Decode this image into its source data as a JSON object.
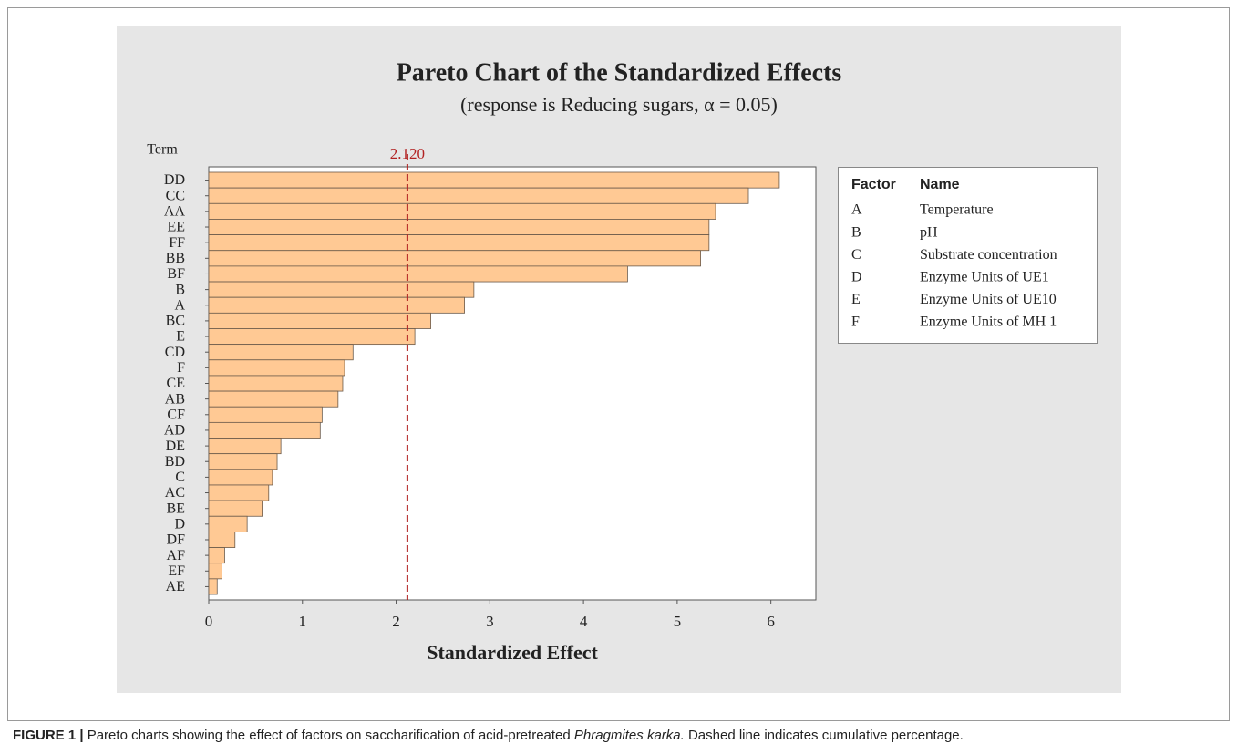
{
  "chart_data": {
    "type": "bar",
    "title": "Pareto Chart of the Standardized Effects",
    "subtitle": "(response is Reducing sugars, α = 0.05)",
    "y_axis_label": "Term",
    "x_axis_label": "Standardized Effect",
    "categories": [
      "DD",
      "CC",
      "AA",
      "EE",
      "FF",
      "BB",
      "BF",
      "B",
      "A",
      "BC",
      "E",
      "CD",
      "F",
      "CE",
      "AB",
      "CF",
      "AD",
      "DE",
      "BD",
      "C",
      "AC",
      "BE",
      "D",
      "DF",
      "AF",
      "EF",
      "AE"
    ],
    "values": [
      6.09,
      5.76,
      5.41,
      5.34,
      5.34,
      5.25,
      4.47,
      2.83,
      2.73,
      2.37,
      2.2,
      1.54,
      1.45,
      1.43,
      1.38,
      1.21,
      1.19,
      0.77,
      0.73,
      0.68,
      0.64,
      0.57,
      0.41,
      0.28,
      0.17,
      0.14,
      0.09
    ],
    "color": "#ffc994",
    "xlim": [
      0,
      6.48
    ],
    "xticks": [
      0,
      1,
      2,
      3,
      4,
      5,
      6
    ],
    "reference_line": {
      "value": 2.12,
      "label": "2.120",
      "color": "#b22222"
    },
    "legend": {
      "headers": [
        "Factor",
        "Name"
      ],
      "rows": [
        [
          "A",
          "Temperature"
        ],
        [
          "B",
          "pH"
        ],
        [
          "C",
          "Substrate concentration"
        ],
        [
          "D",
          "Enzyme Units of UE1"
        ],
        [
          "E",
          "Enzyme Units of UE10"
        ],
        [
          "F",
          "Enzyme Units of MH 1"
        ]
      ]
    }
  },
  "caption": {
    "label": "FIGURE 1 |",
    "text_before": " Pareto charts showing the effect of factors on saccharification of acid-pretreated ",
    "italic": "Phragmites karka.",
    "text_after": " Dashed line indicates cumulative percentage."
  }
}
